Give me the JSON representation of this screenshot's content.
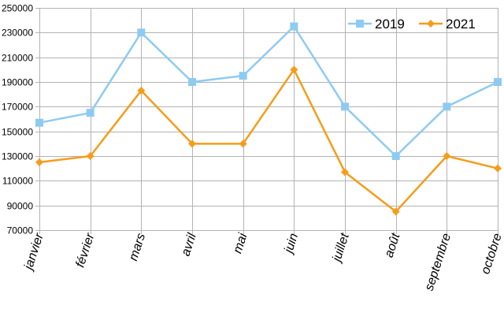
{
  "chart_data": {
    "type": "line",
    "title": "",
    "xlabel": "",
    "ylabel": "",
    "categories": [
      "janvier",
      "février",
      "mars",
      "avril",
      "mai",
      "juin",
      "juillet",
      "août",
      "septembre",
      "octobre"
    ],
    "series": [
      {
        "name": "2019",
        "color": "#8ecbf2",
        "marker": "square",
        "values": [
          157000,
          165000,
          230000,
          190000,
          195000,
          235000,
          170000,
          130000,
          170000,
          190000
        ]
      },
      {
        "name": "2021",
        "color": "#f59d1a",
        "marker": "diamond",
        "values": [
          125000,
          130000,
          183000,
          140000,
          140000,
          200000,
          117000,
          85000,
          130000,
          120000
        ]
      }
    ],
    "ylim": [
      70000,
      250000
    ],
    "yticks": [
      70000,
      90000,
      110000,
      130000,
      150000,
      170000,
      190000,
      210000,
      230000,
      250000
    ],
    "ytick_labels": [
      "70000",
      "90000",
      "110000",
      "130000",
      "150000",
      "170000",
      "190000",
      "210000",
      "230000",
      "250000"
    ],
    "grid": true,
    "legend_position": "top-right"
  }
}
